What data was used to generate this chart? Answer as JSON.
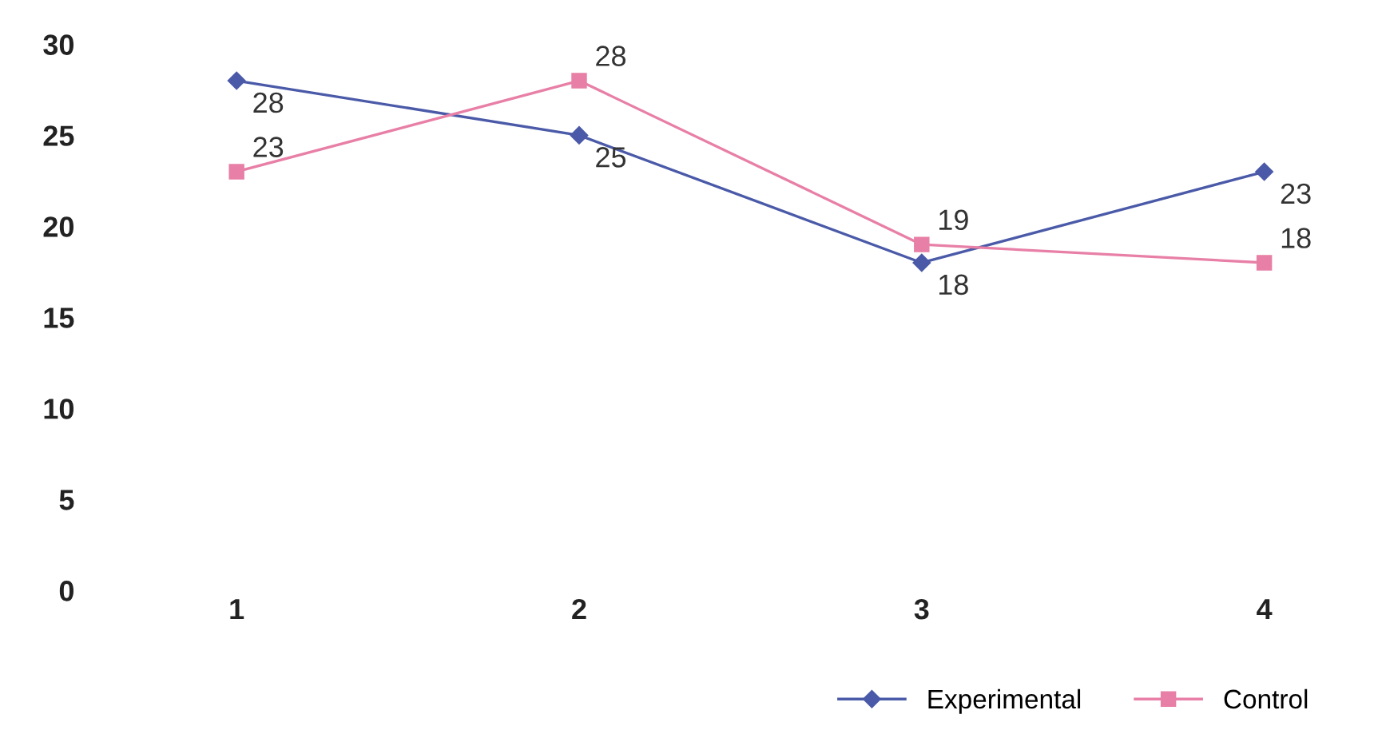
{
  "chart_data": {
    "type": "line",
    "categories": [
      "1",
      "2",
      "3",
      "4"
    ],
    "series": [
      {
        "name": "Experimental",
        "color": "#4a5aa8",
        "marker": "diamond",
        "values": [
          28,
          25,
          18,
          23
        ]
      },
      {
        "name": "Control",
        "color": "#e87fa6",
        "marker": "square",
        "values": [
          23,
          28,
          19,
          18
        ]
      }
    ],
    "ylim": [
      0,
      30
    ],
    "yticks": [
      0,
      5,
      10,
      15,
      20,
      25,
      30
    ],
    "grid": false,
    "legend": "bottom right",
    "data_labels": true,
    "line_style": "solid"
  }
}
